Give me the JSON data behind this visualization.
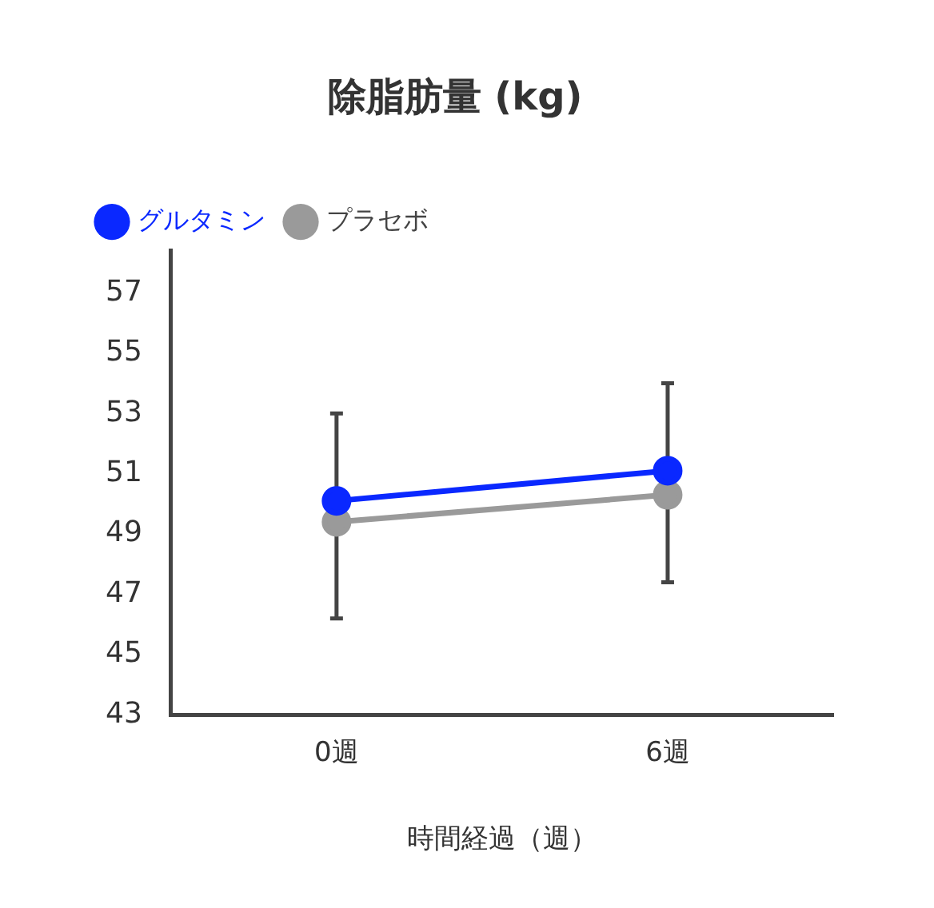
{
  "chart_data": {
    "type": "line",
    "title": "除脂肪量 (kg)",
    "xlabel": "時間経過（週）",
    "categories": [
      "0週",
      "6週"
    ],
    "series": [
      {
        "name": "グルタミン",
        "color": "#0a28ff",
        "values": [
          50.1,
          51.1
        ],
        "errors": [
          [
            46.2,
            53.0
          ],
          [
            47.4,
            54.0
          ]
        ]
      },
      {
        "name": "プラセボ",
        "color": "#9a9a9a",
        "values": [
          49.4,
          50.3
        ]
      }
    ],
    "ylim": [
      43,
      58.4
    ],
    "yticks": [
      43,
      45,
      47,
      49,
      51,
      53,
      55,
      57
    ],
    "grid": false,
    "legend": "top left",
    "marker": "circle",
    "line_style": "solid"
  }
}
